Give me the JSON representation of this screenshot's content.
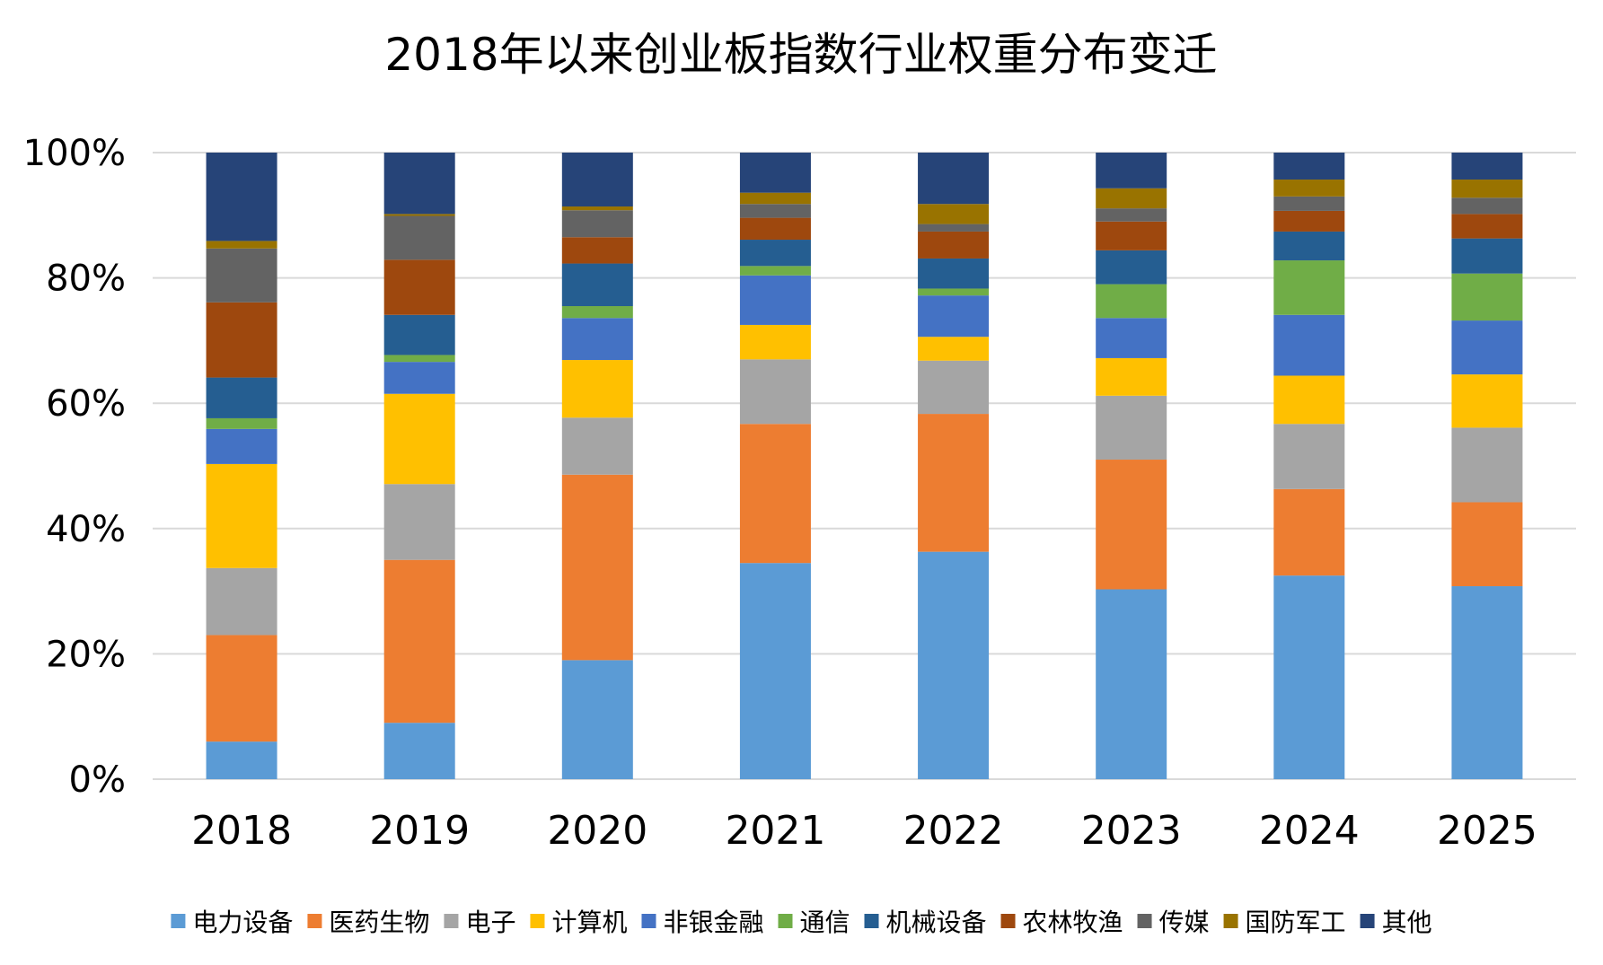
{
  "chart_data": {
    "type": "bar",
    "stacked": true,
    "title": "2018年以来创业板指数行业权重分布变迁",
    "xlabel": "",
    "ylabel": "",
    "ylim": [
      0,
      100
    ],
    "y_ticks": [
      "0%",
      "20%",
      "40%",
      "60%",
      "80%",
      "100%"
    ],
    "grid": true,
    "legend_position": "bottom",
    "categories": [
      "2018",
      "2019",
      "2020",
      "2021",
      "2022",
      "2023",
      "2024",
      "2025"
    ],
    "series": [
      {
        "name": "电力设备",
        "color": "#5B9BD5",
        "values": [
          6,
          9,
          19,
          34.5,
          36.3,
          30.3,
          32.5,
          30.8
        ]
      },
      {
        "name": "医药生物",
        "color": "#ED7D31",
        "values": [
          17,
          26,
          29.6,
          22.2,
          22,
          20.7,
          13.8,
          13.4
        ]
      },
      {
        "name": "电子",
        "color": "#A5A5A5",
        "values": [
          10.7,
          12.1,
          9.1,
          10.3,
          8.5,
          10.2,
          10.4,
          11.9
        ]
      },
      {
        "name": "计算机",
        "color": "#FFC000",
        "values": [
          16.6,
          14.4,
          9.2,
          5.5,
          3.8,
          6,
          7.7,
          8.5
        ]
      },
      {
        "name": "非银金融",
        "color": "#4472C4",
        "values": [
          5.6,
          5.1,
          6.7,
          7.9,
          6.6,
          6.4,
          9.7,
          8.6
        ]
      },
      {
        "name": "通信",
        "color": "#70AD47",
        "values": [
          1.7,
          1.1,
          1.9,
          1.5,
          1.1,
          5.4,
          8.7,
          7.5
        ]
      },
      {
        "name": "机械设备",
        "color": "#255E91",
        "values": [
          6.5,
          6.4,
          6.8,
          4.2,
          4.8,
          5.4,
          4.6,
          5.6
        ]
      },
      {
        "name": "农林牧渔",
        "color": "#9E480E",
        "values": [
          12,
          8.8,
          4.2,
          3.5,
          4.3,
          4.6,
          3.3,
          3.9
        ]
      },
      {
        "name": "传媒",
        "color": "#636363",
        "values": [
          8.6,
          7,
          4.3,
          2.2,
          1.2,
          2.1,
          2.3,
          2.6
        ]
      },
      {
        "name": "国防军工",
        "color": "#997300",
        "values": [
          1.2,
          0.3,
          0.6,
          1.8,
          3.2,
          3.2,
          2.7,
          2.9
        ]
      },
      {
        "name": "其他",
        "color": "#264478",
        "values": [
          14.1,
          9.8,
          8.6,
          6.4,
          8.2,
          5.7,
          4.3,
          4.3
        ]
      }
    ]
  }
}
